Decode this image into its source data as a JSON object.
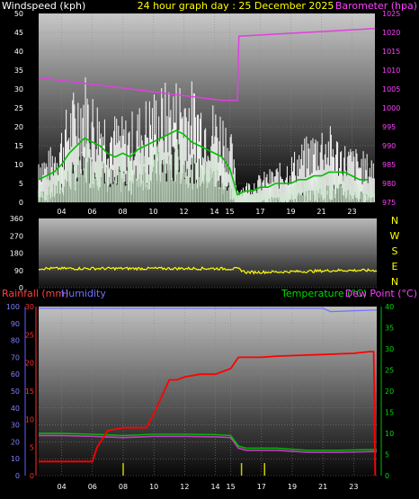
{
  "header": {
    "windspeed_label": "Windspeed (kph)",
    "title": "24 hour graph day : 25 December 2025",
    "barometer_label": "Barometer (hpa)"
  },
  "bottom_header": {
    "rainfall_label": "Rainfall (mm)",
    "humidity_label": "Humidity",
    "temperature_label": "Temperature (°C)",
    "dewpoint_label": "Dew Point (°C)"
  },
  "compass": [
    "N",
    "W",
    "S",
    "E",
    "N"
  ],
  "colors": {
    "wind_gust": "#ffffff",
    "wind_avg_band": "#cfe8cf",
    "wind_avg_line": "#00c000",
    "barometer": "#e040e0",
    "wind_dir": "#ffff00",
    "rain": "#ff0000",
    "humidity": "#7070ff",
    "temperature": "#00c000",
    "dewpoint": "#c040c0",
    "rain_rate": "#cccc00"
  },
  "chart_data": [
    {
      "type": "line",
      "name": "wind-barometer",
      "x_ticks": [
        "04",
        "06",
        "08",
        "10",
        "12",
        "14",
        "15",
        "17",
        "19",
        "21",
        "23"
      ],
      "x_range": [
        2.5,
        24.5
      ],
      "y_left_ticks": [
        "0",
        "5",
        "10",
        "15",
        "20",
        "25",
        "30",
        "35",
        "40",
        "45",
        "50"
      ],
      "y_left_range": [
        0,
        50
      ],
      "y_right_ticks": [
        "975",
        "980",
        "985",
        "990",
        "995",
        "1000",
        "1005",
        "1010",
        "1015",
        "1020",
        "1025"
      ],
      "y_right_range": [
        975,
        1025
      ],
      "series": [
        {
          "key": "gust",
          "x": [
            2.5,
            3,
            3.5,
            4,
            4.5,
            5,
            5.5,
            6,
            6.5,
            7,
            7.5,
            8,
            8.5,
            9,
            9.5,
            10,
            10.5,
            11,
            11.5,
            12,
            12.5,
            13,
            13.5,
            14,
            14.5,
            15,
            15.5,
            16,
            16.5,
            17,
            17.5,
            18,
            18.5,
            19,
            19.5,
            20,
            20.5,
            21,
            21.5,
            22,
            22.5,
            23,
            23.5,
            24
          ],
          "y": [
            14,
            12,
            15,
            20,
            25,
            30,
            33,
            28,
            26,
            24,
            22,
            21,
            22,
            24,
            26,
            28,
            29,
            30,
            31,
            32,
            30,
            28,
            26,
            25,
            24,
            20,
            4,
            5,
            6,
            7,
            8,
            9,
            10,
            12,
            14,
            16,
            18,
            20,
            19,
            17,
            15,
            14,
            13,
            12
          ]
        },
        {
          "key": "avg",
          "x": [
            2.5,
            3,
            3.5,
            4,
            4.5,
            5,
            5.5,
            6,
            6.5,
            7,
            7.5,
            8,
            8.5,
            9,
            9.5,
            10,
            10.5,
            11,
            11.5,
            12,
            12.5,
            13,
            13.5,
            14,
            14.5,
            15,
            15.5,
            16,
            16.5,
            17,
            17.5,
            18,
            18.5,
            19,
            19.5,
            20,
            20.5,
            21,
            21.5,
            22,
            22.5,
            23,
            23.5,
            24
          ],
          "y": [
            6,
            7,
            8,
            10,
            13,
            15,
            17,
            16,
            15,
            13,
            12,
            13,
            12,
            14,
            15,
            16,
            17,
            18,
            19,
            18,
            16,
            15,
            14,
            13,
            12,
            9,
            2,
            3,
            3,
            4,
            4,
            5,
            5,
            5,
            6,
            6,
            7,
            7,
            8,
            8,
            8,
            7,
            6,
            6
          ]
        },
        {
          "key": "barometer",
          "x": [
            2.5,
            14.5,
            15.5,
            15.6,
            24.5
          ],
          "y": [
            1008,
            1002,
            1002,
            1019,
            1021
          ]
        }
      ]
    },
    {
      "type": "line",
      "name": "wind-direction",
      "x_range": [
        2.5,
        24.5
      ],
      "y_ticks": [
        "0",
        "90",
        "180",
        "270",
        "360"
      ],
      "y_range": [
        0,
        360
      ],
      "series": [
        {
          "key": "direction",
          "x": [
            2.5,
            5,
            8,
            11,
            14,
            15.5,
            16,
            18,
            20,
            22,
            24.5
          ],
          "y": [
            100,
            100,
            100,
            100,
            100,
            98,
            80,
            82,
            85,
            90,
            90
          ]
        }
      ]
    },
    {
      "type": "line",
      "name": "rain-temperature",
      "x_ticks": [
        "04",
        "06",
        "08",
        "10",
        "12",
        "14",
        "15",
        "17",
        "19",
        "21",
        "23"
      ],
      "x_range": [
        2.5,
        24.5
      ],
      "y_humidity_ticks": [
        "0",
        "10",
        "20",
        "30",
        "40",
        "50",
        "60",
        "70",
        "80",
        "90",
        "100"
      ],
      "y_humidity_range": [
        0,
        100
      ],
      "y_rain_ticks": [
        "0",
        "5",
        "10",
        "15",
        "20",
        "25",
        "30"
      ],
      "y_rain_range": [
        0,
        30
      ],
      "y_temp_ticks": [
        "0",
        "5",
        "10",
        "15",
        "20",
        "25",
        "30",
        "35",
        "40"
      ],
      "y_temp_range": [
        0,
        40
      ],
      "series": [
        {
          "key": "rain",
          "x": [
            2.5,
            6,
            6.3,
            7,
            8,
            9,
            9.5,
            10,
            10.5,
            11,
            11.5,
            12,
            13,
            14,
            15,
            15.5,
            16,
            17,
            18,
            19,
            20,
            21,
            22,
            23,
            24,
            24.3,
            24.4
          ],
          "y": [
            2.5,
            2.5,
            5,
            8,
            8.5,
            8.5,
            8.5,
            11,
            14,
            17,
            17,
            17.5,
            18,
            18,
            19,
            21,
            21,
            21,
            21.2,
            21.3,
            21.4,
            21.5,
            21.6,
            21.7,
            22,
            22,
            0
          ]
        },
        {
          "key": "humidity",
          "x": [
            2.5,
            21,
            21.5,
            24.5
          ],
          "y": [
            99,
            99,
            97,
            98
          ]
        },
        {
          "key": "temperature",
          "x": [
            2.5,
            4,
            6,
            8,
            10,
            12,
            14,
            15,
            15.5,
            16,
            18,
            20,
            22,
            24.5
          ],
          "y": [
            10,
            10,
            9.8,
            9.5,
            9.8,
            9.8,
            9.7,
            9.5,
            7,
            6.5,
            6.5,
            6,
            6,
            6.2
          ]
        },
        {
          "key": "dewpoint",
          "x": [
            2.5,
            4,
            6,
            8,
            10,
            12,
            14,
            15,
            15.5,
            16,
            18,
            20,
            22,
            24.5
          ],
          "y": [
            9.5,
            9.5,
            9.3,
            9,
            9.3,
            9.3,
            9.2,
            9,
            6.5,
            6,
            6,
            5.5,
            5.5,
            5.7
          ]
        },
        {
          "key": "rain_rate",
          "x": [
            8,
            15.7,
            17.2
          ],
          "y": [
            1,
            1,
            1
          ]
        }
      ]
    }
  ]
}
